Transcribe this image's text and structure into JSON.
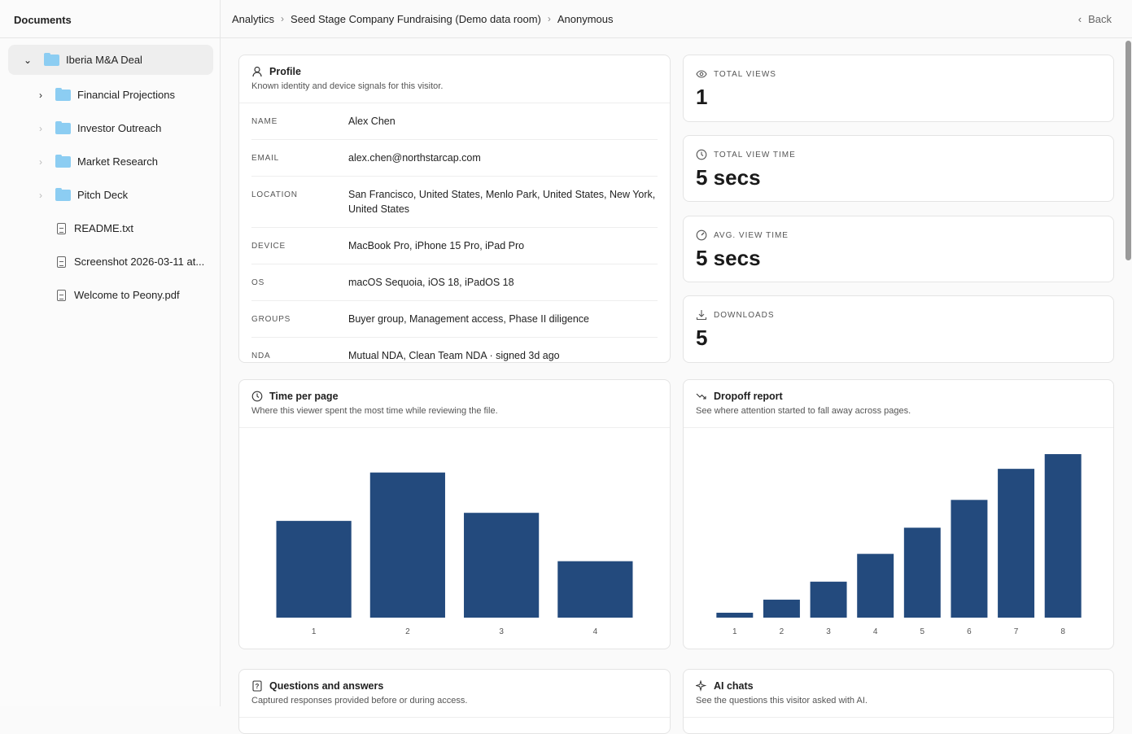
{
  "sidebar": {
    "title": "Documents",
    "root": "Iberia M&A Deal",
    "folders": [
      "Financial Projections",
      "Investor Outreach",
      "Market Research",
      "Pitch Deck"
    ],
    "files": [
      "README.txt",
      "Screenshot 2026-03-11 at...",
      "Welcome to Peony.pdf"
    ]
  },
  "header": {
    "breadcrumb": [
      "Analytics",
      "Seed Stage Company Fundraising (Demo data room)",
      "Anonymous"
    ],
    "back": "Back"
  },
  "profile": {
    "title": "Profile",
    "subtitle": "Known identity and device signals for this visitor.",
    "rows": [
      {
        "label": "NAME",
        "value": "Alex Chen"
      },
      {
        "label": "EMAIL",
        "value": "alex.chen@northstarcap.com"
      },
      {
        "label": "LOCATION",
        "value": "San Francisco, United States, Menlo Park, United States, New York, United States"
      },
      {
        "label": "DEVICE",
        "value": "MacBook Pro, iPhone 15 Pro, iPad Pro"
      },
      {
        "label": "OS",
        "value": "macOS Sequoia, iOS 18, iPadOS 18"
      },
      {
        "label": "GROUPS",
        "value": "Buyer group, Management access, Phase II diligence"
      },
      {
        "label": "NDA",
        "value": "Mutual NDA, Clean Team NDA · signed 3d ago"
      }
    ]
  },
  "stats": [
    {
      "label": "TOTAL VIEWS",
      "value": "1",
      "icon": "eye-icon"
    },
    {
      "label": "TOTAL VIEW TIME",
      "value": "5 secs",
      "icon": "clock-icon"
    },
    {
      "label": "AVG. VIEW TIME",
      "value": "5 secs",
      "icon": "gauge-icon"
    },
    {
      "label": "DOWNLOADS",
      "value": "5",
      "icon": "download-icon"
    }
  ],
  "time_card": {
    "title": "Time per page",
    "subtitle": "Where this viewer spent the most time while reviewing the file."
  },
  "dropoff_card": {
    "title": "Dropoff report",
    "subtitle": "See where attention started to fall away across pages."
  },
  "qa_card": {
    "title": "Questions and answers",
    "subtitle": "Captured responses provided before or during access."
  },
  "ai_card": {
    "title": "AI chats",
    "subtitle": "See the questions this visitor asked with AI."
  },
  "chart_data": [
    {
      "type": "bar",
      "categories": [
        "1",
        "2",
        "3",
        "4"
      ],
      "values": [
        1.2,
        1.8,
        1.3,
        0.7
      ],
      "ylim": [
        0,
        2.15
      ],
      "grid": false,
      "color": "#234a7d"
    },
    {
      "type": "bar",
      "categories": [
        "1",
        "2",
        "3",
        "4",
        "5",
        "6",
        "7",
        "8"
      ],
      "values": [
        3,
        11,
        22,
        39,
        55,
        72,
        91,
        100
      ],
      "ylim": [
        0,
        106
      ],
      "grid": false,
      "color": "#234a7d"
    }
  ]
}
